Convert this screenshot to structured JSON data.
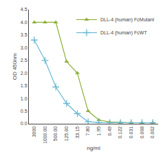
{
  "chart_data": {
    "type": "line",
    "xlabel": "ng/ml",
    "ylabel": "OD 450nm",
    "categories": [
      "3000",
      "1000.00",
      "500.00",
      "125.00",
      "33.15",
      "7.80",
      "1.95",
      "0.49",
      "0.122",
      "0.031",
      "0.008",
      "0.002"
    ],
    "series": [
      {
        "name": "DLL-4 (human) FcMutant",
        "color": "#8db03a",
        "marker": "triangle",
        "values": [
          4.0,
          4.0,
          4.0,
          2.45,
          2.0,
          0.5,
          0.15,
          0.07,
          0.05,
          0.04,
          0.04,
          0.04
        ]
      },
      {
        "name": "DLL-4 (human) FcWT",
        "color": "#6ab8d4",
        "marker": "plus",
        "values": [
          3.3,
          2.5,
          1.45,
          0.8,
          0.4,
          0.08,
          0.05,
          0.04,
          0.04,
          0.04,
          0.04,
          0.04
        ]
      }
    ],
    "ylim": [
      0,
      4.5
    ],
    "yticks": [
      {
        "value": 0.0,
        "label": "0.0"
      },
      0.5,
      {
        "value": 1.0,
        "label": "1.0"
      },
      1.5,
      {
        "value": 2.0,
        "label": "2.0"
      },
      2.5,
      {
        "value": 3.0,
        "label": "3.0"
      },
      3.5,
      {
        "value": 4.0,
        "label": "4.0"
      },
      4.5
    ],
    "grid": false,
    "legend": "upper right"
  }
}
